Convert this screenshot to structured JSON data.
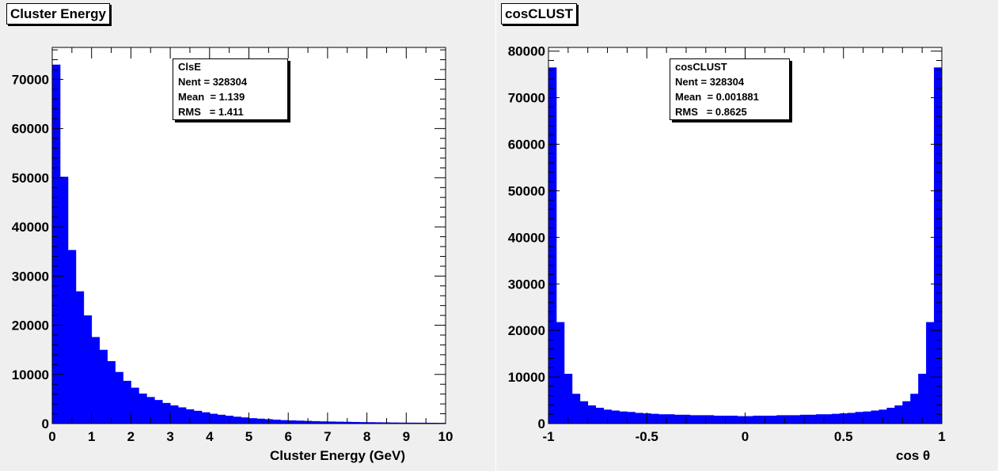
{
  "panels": [
    {
      "title": "Cluster Energy",
      "stats": {
        "name": "ClsE",
        "nent": "Nent = 328304",
        "mean": "Mean  = 1.139",
        "rms": "RMS   = 1.411"
      },
      "xtitle": "Cluster Energy (GeV)"
    },
    {
      "title": "cosCLUST",
      "stats": {
        "name": "cosCLUST",
        "nent": "Nent = 328304",
        "mean": "Mean  = 0.001881",
        "rms": "RMS   = 0.8625"
      },
      "xtitle": "cos θ"
    }
  ],
  "colors": {
    "bars": "#0000ff",
    "pad": "#efefef",
    "frame": "#ffffff"
  },
  "chart_data": [
    {
      "type": "bar",
      "title": "Cluster Energy",
      "xlabel": "Cluster Energy (GeV)",
      "ylabel": "",
      "xlim": [
        0,
        10
      ],
      "ylim": [
        0,
        76500
      ],
      "xticks": [
        "0",
        "1",
        "2",
        "3",
        "4",
        "5",
        "6",
        "7",
        "8",
        "9",
        "10"
      ],
      "yticks": [
        "0",
        "10000",
        "20000",
        "30000",
        "40000",
        "50000",
        "60000",
        "70000"
      ],
      "bin_width": 0.2,
      "values": [
        73000,
        50200,
        35300,
        26900,
        22000,
        17600,
        15000,
        12700,
        10500,
        8700,
        7300,
        6100,
        5400,
        4800,
        4200,
        3700,
        3300,
        2900,
        2600,
        2300,
        2000,
        1800,
        1600,
        1400,
        1250,
        1100,
        1000,
        900,
        800,
        700,
        650,
        600,
        550,
        500,
        450,
        420,
        390,
        360,
        330,
        300,
        280,
        260,
        240,
        220,
        200,
        190,
        180,
        170,
        160,
        150
      ]
    },
    {
      "type": "bar",
      "title": "cosCLUST",
      "xlabel": "cos θ",
      "ylabel": "",
      "xlim": [
        -1,
        1
      ],
      "ylim": [
        0,
        80800
      ],
      "xticks": [
        "-1",
        "-0.5",
        "0",
        "0.5",
        "1"
      ],
      "yticks": [
        "0",
        "10000",
        "20000",
        "30000",
        "40000",
        "50000",
        "60000",
        "70000",
        "80000"
      ],
      "bin_width": 0.04,
      "values": [
        76500,
        21800,
        10700,
        6400,
        4800,
        3900,
        3400,
        3000,
        2800,
        2600,
        2500,
        2300,
        2200,
        2100,
        2000,
        2000,
        1900,
        1900,
        1800,
        1800,
        1800,
        1700,
        1700,
        1700,
        1600,
        1600,
        1700,
        1700,
        1700,
        1800,
        1800,
        1800,
        1900,
        1900,
        2000,
        2000,
        2100,
        2200,
        2300,
        2500,
        2600,
        2800,
        3000,
        3400,
        3900,
        4800,
        6400,
        10700,
        21800,
        76500
      ]
    }
  ]
}
